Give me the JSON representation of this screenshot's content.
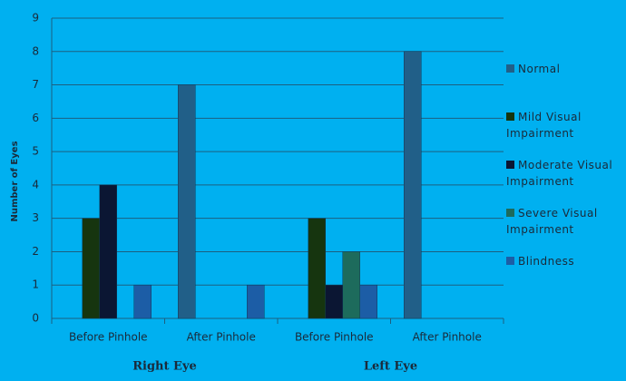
{
  "chart_data": {
    "type": "bar",
    "ylabel": "Number of Eyes",
    "categories": [
      "Before Pinhole",
      "After Pinhole",
      "Before Pinhole",
      "After Pinhole"
    ],
    "group_labels": [
      "Right Eye",
      "Left Eye"
    ],
    "series": [
      {
        "name": "Normal",
        "color": "#215f88",
        "values": [
          0,
          7,
          0,
          8
        ]
      },
      {
        "name": "Mild Visual Impairment",
        "color": "#16350f",
        "values": [
          3,
          0,
          3,
          0
        ]
      },
      {
        "name": "Moderate Visual Impairment",
        "color": "#0b1633",
        "values": [
          4,
          0,
          1,
          0
        ]
      },
      {
        "name": "Severe Visual Impairment",
        "color": "#1d6b5c",
        "values": [
          0,
          0,
          2,
          0
        ]
      },
      {
        "name": "Blindness",
        "color": "#1c5da6",
        "values": [
          1,
          1,
          1,
          0
        ]
      }
    ],
    "ylim": [
      0,
      9
    ],
    "yticks": [
      0,
      1,
      2,
      3,
      4,
      5,
      6,
      7,
      8,
      9
    ],
    "grid": true,
    "legend": "right"
  }
}
